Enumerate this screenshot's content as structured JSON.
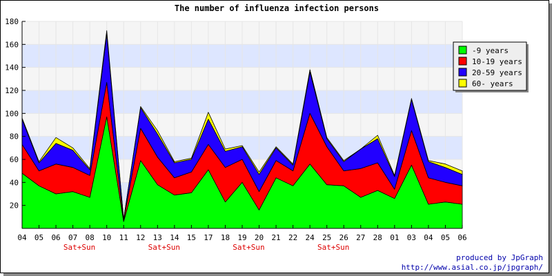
{
  "chart_data": {
    "type": "area",
    "stacked": true,
    "title": "The number of influenza infection persons",
    "categories": [
      "04",
      "05",
      "06",
      "07",
      "08",
      "10",
      "11",
      "12",
      "13",
      "14",
      "15",
      "17",
      "18",
      "19",
      "20",
      "21",
      "22",
      "24",
      "25",
      "26",
      "27",
      "28",
      "01",
      "03",
      "04",
      "05",
      "06"
    ],
    "weekend_labels": [
      {
        "category_index": 2,
        "label": "Sat+Sun"
      },
      {
        "category_index": 7,
        "label": "Sat+Sun"
      },
      {
        "category_index": 12,
        "label": "Sat+Sun"
      },
      {
        "category_index": 17,
        "label": "Sat+Sun"
      }
    ],
    "ylim": [
      0,
      180
    ],
    "yticks": [
      20,
      40,
      60,
      80,
      100,
      120,
      140,
      160,
      180
    ],
    "grid": true,
    "legend_position": "top-right",
    "series": [
      {
        "name": "-9 years",
        "color": "#00ff00",
        "values": [
          48,
          37,
          30,
          32,
          27,
          97,
          6,
          59,
          38,
          29,
          31,
          51,
          23,
          40,
          16,
          44,
          37,
          56,
          38,
          37,
          27,
          33,
          26,
          55,
          21,
          23,
          21
        ]
      },
      {
        "name": "10-19 years",
        "color": "#ff0000",
        "values": [
          25,
          13,
          26,
          21,
          19,
          30,
          1,
          28,
          24,
          15,
          18,
          22,
          30,
          20,
          16,
          15,
          13,
          44,
          33,
          13,
          25,
          24,
          8,
          30,
          23,
          17,
          16
        ]
      },
      {
        "name": "20-59 years",
        "color": "#2200ff",
        "values": [
          22,
          7,
          18,
          15,
          5,
          42,
          1,
          18,
          20,
          13,
          11,
          22,
          14,
          11,
          15,
          11,
          5,
          36,
          7,
          8,
          17,
          21,
          11,
          27,
          14,
          13,
          10
        ]
      },
      {
        "name": "60- years",
        "color": "#ffff00",
        "values": [
          1,
          1,
          5,
          2,
          1,
          3,
          0,
          1,
          3,
          1,
          1,
          6,
          2,
          1,
          2,
          1,
          1,
          2,
          1,
          1,
          0,
          3,
          1,
          1,
          1,
          3,
          3
        ]
      }
    ],
    "credit": {
      "line1": "produced by JpGraph",
      "line2": "http://www.asial.co.jp/jpgraph/"
    }
  }
}
